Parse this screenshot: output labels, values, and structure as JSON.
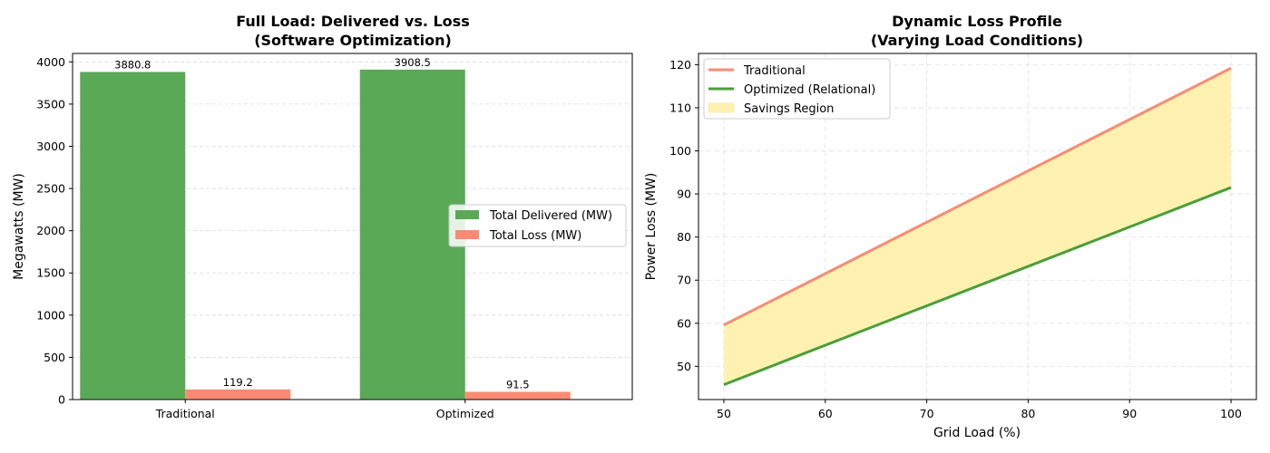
{
  "chart_data": [
    {
      "type": "bar",
      "title": "Full Load: Delivered vs. Loss",
      "subtitle": "(Software Optimization)",
      "xlabel": "",
      "ylabel": "Megawatts (MW)",
      "categories": [
        "Traditional",
        "Optimized"
      ],
      "series": [
        {
          "name": "Total Delivered (MW)",
          "values": [
            3880.8,
            3908.5
          ],
          "color": "#5aa957"
        },
        {
          "name": "Total Loss (MW)",
          "values": [
            119.2,
            91.5
          ],
          "color": "#fa8b72"
        }
      ],
      "data_labels": [
        "3880.8",
        "3908.5",
        "119.2",
        "91.5"
      ],
      "ylim": [
        0,
        4100
      ],
      "yticks": [
        0,
        500,
        1000,
        1500,
        2000,
        2500,
        3000,
        3500,
        4000
      ],
      "grid": "y-dashed",
      "legend": "center-right"
    },
    {
      "type": "line",
      "title": "Dynamic Loss Profile",
      "subtitle": "(Varying Load Conditions)",
      "xlabel": "Grid Load (%)",
      "ylabel": "Power Loss (MW)",
      "x": [
        50,
        100
      ],
      "series": [
        {
          "name": "Traditional",
          "values": [
            59.6,
            119.2
          ],
          "color": "#fa8b72"
        },
        {
          "name": "Optimized (Relational)",
          "values": [
            45.75,
            91.5
          ],
          "color": "#4a9e3c"
        }
      ],
      "fill": {
        "name": "Savings Region",
        "between": [
          "Traditional",
          "Optimized (Relational)"
        ],
        "color": "#fff2b0"
      },
      "xlim": [
        47.5,
        102.5
      ],
      "ylim": [
        42.3,
        122.6
      ],
      "xticks": [
        50,
        60,
        70,
        80,
        90,
        100
      ],
      "yticks": [
        50,
        60,
        70,
        80,
        90,
        100,
        110,
        120
      ],
      "grid": "both-dashed",
      "legend": "top-left"
    }
  ]
}
